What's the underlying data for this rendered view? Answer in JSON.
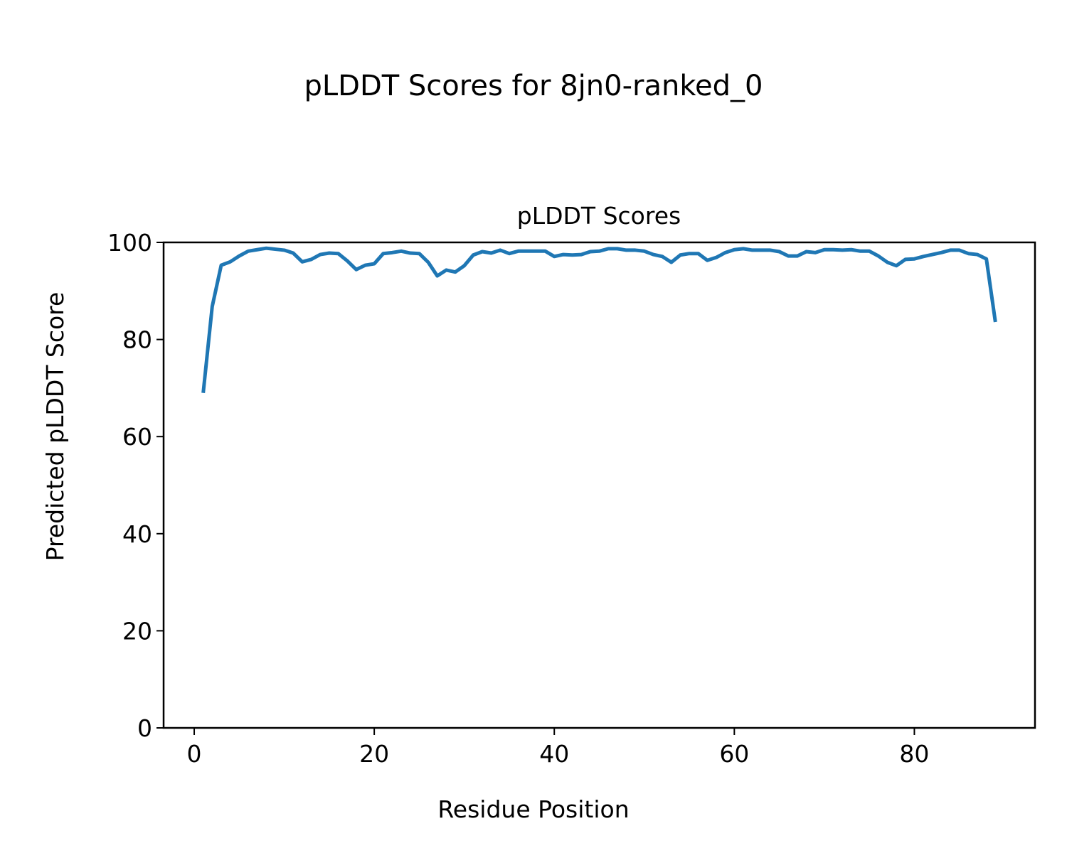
{
  "figure_title": "pLDDT Scores for 8jn0-ranked_0",
  "chart_data": {
    "type": "line",
    "title": "pLDDT Scores",
    "xlabel": "Residue Position",
    "ylabel": "Predicted pLDDT Score",
    "xlim": [
      -3.4,
      93.4
    ],
    "ylim": [
      0,
      100
    ],
    "xticks": [
      0,
      20,
      40,
      60,
      80
    ],
    "yticks": [
      0,
      20,
      40,
      60,
      80,
      100
    ],
    "grid": false,
    "line_color": "#1f77b4",
    "x_start": 1,
    "values": [
      69.0,
      86.8,
      95.3,
      96.0,
      97.2,
      98.2,
      98.5,
      98.8,
      98.6,
      98.4,
      97.8,
      96.0,
      96.5,
      97.5,
      97.8,
      97.7,
      96.2,
      94.4,
      95.3,
      95.6,
      97.7,
      97.9,
      98.2,
      97.8,
      97.7,
      95.9,
      93.1,
      94.3,
      93.9,
      95.2,
      97.4,
      98.1,
      97.8,
      98.4,
      97.7,
      98.2,
      98.2,
      98.2,
      98.2,
      97.1,
      97.5,
      97.4,
      97.5,
      98.1,
      98.2,
      98.7,
      98.7,
      98.4,
      98.4,
      98.2,
      97.5,
      97.1,
      95.9,
      97.4,
      97.7,
      97.7,
      96.3,
      96.9,
      97.9,
      98.5,
      98.7,
      98.4,
      98.4,
      98.4,
      98.1,
      97.2,
      97.2,
      98.1,
      97.9,
      98.5,
      98.5,
      98.4,
      98.5,
      98.2,
      98.2,
      97.2,
      95.9,
      95.2,
      96.5,
      96.6,
      97.1,
      97.5,
      97.9,
      98.4,
      98.4,
      97.7,
      97.5,
      96.6,
      83.6
    ]
  }
}
